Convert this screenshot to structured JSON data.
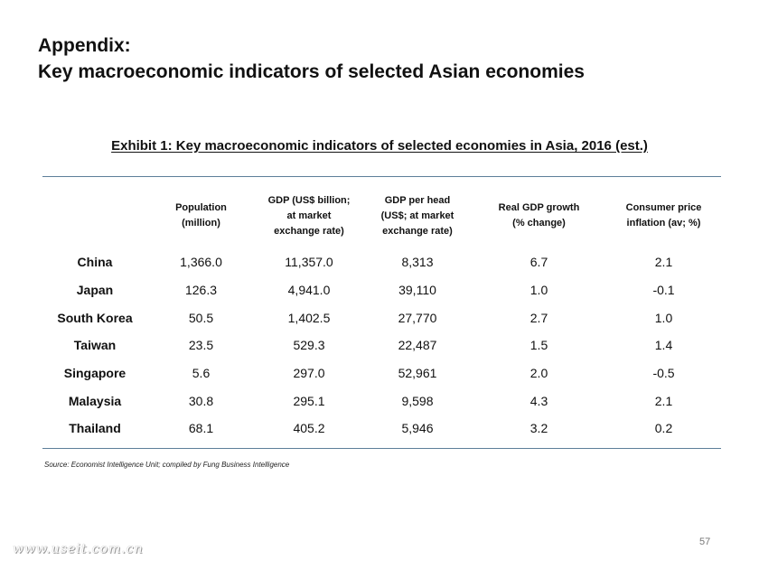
{
  "page": {
    "title_line1": "Appendix:",
    "title_line2": "Key macroeconomic indicators of selected Asian economies",
    "page_number": "57",
    "watermark": "www.useit.com.cn"
  },
  "exhibit": {
    "title": "Exhibit 1: Key macroeconomic indicators of selected economies in Asia, 2016 (est.)",
    "source": "Source: Economist Intelligence Unit; compiled by Fung Business Intelligence"
  },
  "table": {
    "headers": [
      [
        "Population",
        "(million)"
      ],
      [
        "GDP (US$ billion;",
        "at market",
        "exchange rate)"
      ],
      [
        "GDP per head",
        "(US$; at market",
        "exchange rate)"
      ],
      [
        "Real GDP growth",
        "(% change)"
      ],
      [
        "Consumer price",
        "inflation (av; %)"
      ]
    ],
    "rows": [
      [
        "China",
        "1,366.0",
        "11,357.0",
        "8,313",
        "6.7",
        "2.1"
      ],
      [
        "Japan",
        "126.3",
        "4,941.0",
        "39,110",
        "1.0",
        "-0.1"
      ],
      [
        "South Korea",
        "50.5",
        "1,402.5",
        "27,770",
        "2.7",
        "1.0"
      ],
      [
        "Taiwan",
        "23.5",
        "529.3",
        "22,487",
        "1.5",
        "1.4"
      ],
      [
        "Singapore",
        "5.6",
        "297.0",
        "52,961",
        "2.0",
        "-0.5"
      ],
      [
        "Malaysia",
        "30.8",
        "295.1",
        "9,598",
        "4.3",
        "2.1"
      ],
      [
        "Thailand",
        "68.1",
        "405.2",
        "5,946",
        "3.2",
        "0.2"
      ]
    ]
  },
  "colors": {
    "rule": "#5d7f99",
    "text": "#111111"
  }
}
